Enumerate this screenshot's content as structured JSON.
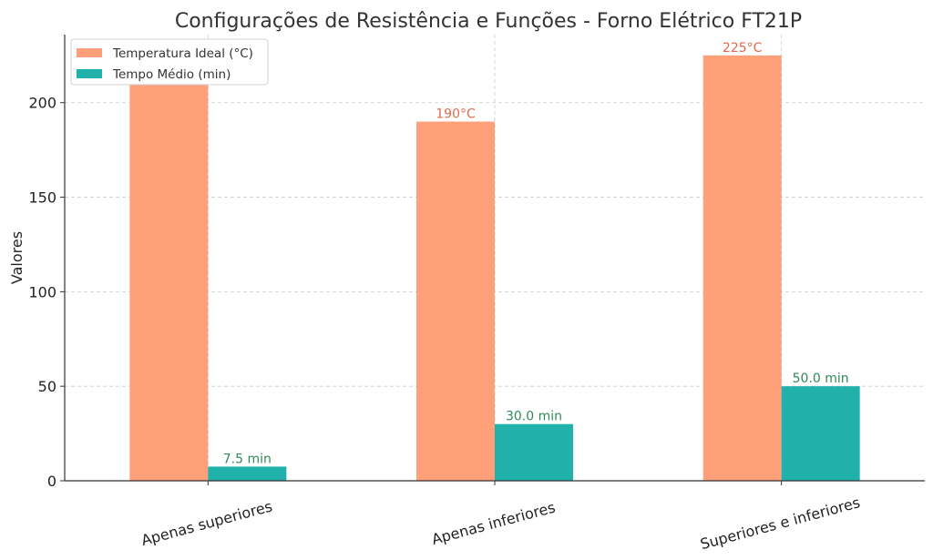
{
  "chart_data": {
    "type": "bar",
    "title": "Configurações de Resistência e Funções - Forno Elétrico FT21P",
    "xlabel": "",
    "ylabel": "Valores",
    "categories": [
      "Apenas superiores",
      "Apenas inferiores",
      "Superiores e inferiores"
    ],
    "series": [
      {
        "name": "Temperatura Ideal (°C)",
        "values": [
          210,
          190,
          225
        ],
        "color": "#ffa07a",
        "labels": [
          "",
          "190°C",
          "225°C"
        ],
        "label_color": "#e06a4a"
      },
      {
        "name": "Tempo Médio (min)",
        "values": [
          7.5,
          30.0,
          50.0
        ],
        "color": "#20b2aa",
        "labels": [
          "7.5 min",
          "30.0 min",
          "50.0 min"
        ],
        "label_color": "#2e8b57"
      }
    ],
    "ylim": [
      0,
      236
    ],
    "yticks": [
      0,
      50,
      100,
      150,
      200
    ],
    "grid": true,
    "legend_position": "top-left"
  }
}
